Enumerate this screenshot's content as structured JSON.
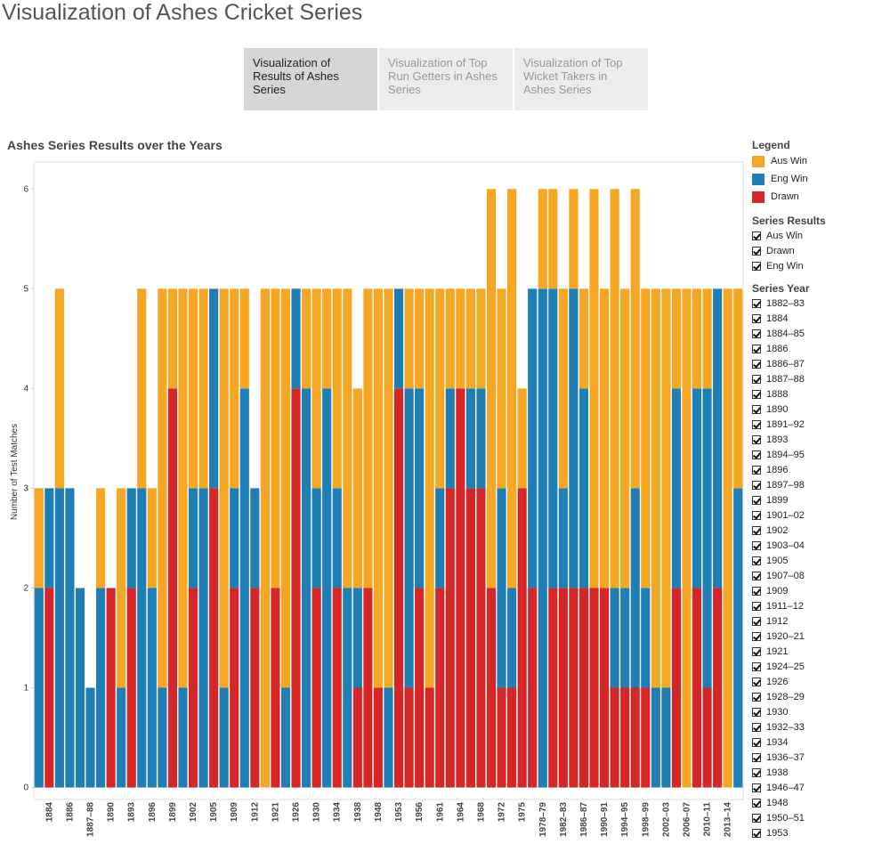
{
  "header": {
    "title": "Visualization of Ashes Cricket Series"
  },
  "tabs": [
    "Visualization of Results of Ashes Series",
    "Visualization of Top Run Getters in Ashes Series",
    "Visualization of Top Wicket Takers in Ashes Series"
  ],
  "chart_data": {
    "type": "stacked_bar",
    "title": "Ashes Series Results over the Years",
    "y_label": "Number of Test Matches",
    "categories": [
      null,
      "1884",
      null,
      "1886",
      null,
      "1887–88",
      null,
      "1890",
      null,
      "1893",
      null,
      "1896",
      null,
      "1899",
      null,
      "1902",
      null,
      "1905",
      null,
      "1909",
      null,
      "1912",
      null,
      "1921",
      null,
      "1926",
      null,
      "1930",
      null,
      "1934",
      null,
      "1938",
      null,
      "1948",
      null,
      "1953",
      null,
      "1956",
      null,
      "1961",
      null,
      "1964",
      null,
      "1968",
      null,
      "1972",
      null,
      "1975",
      null,
      "1978–79",
      null,
      "1982–83",
      null,
      "1986–87",
      null,
      "1990–91",
      null,
      "1994–95",
      null,
      "1998–99",
      null,
      "2002–03",
      null,
      "2006–07",
      null,
      "2010–11",
      null,
      "2013–14",
      null
    ],
    "series": [
      {
        "name": "Aus Win",
        "color": "#f5a623",
        "values": [
          1,
          0,
          2,
          0,
          0,
          0,
          1,
          0,
          2,
          0,
          2,
          1,
          4,
          1,
          4,
          2,
          2,
          0,
          4,
          2,
          1,
          0,
          5,
          3,
          4,
          0,
          1,
          2,
          1,
          2,
          3,
          2,
          3,
          4,
          4,
          0,
          1,
          1,
          4,
          2,
          1,
          1,
          1,
          1,
          4,
          2,
          4,
          1,
          0,
          1,
          1,
          2,
          1,
          1,
          4,
          3,
          4,
          3,
          3,
          3,
          4,
          4,
          1,
          5,
          1,
          1,
          0,
          5,
          2
        ]
      },
      {
        "name": "Eng Win",
        "color": "#1f7fb4",
        "values": [
          2,
          1,
          3,
          3,
          2,
          1,
          2,
          0,
          1,
          1,
          3,
          2,
          1,
          0,
          1,
          1,
          3,
          2,
          1,
          1,
          4,
          1,
          0,
          0,
          1,
          1,
          4,
          1,
          4,
          1,
          2,
          1,
          0,
          0,
          1,
          1,
          3,
          2,
          0,
          1,
          1,
          0,
          1,
          1,
          0,
          2,
          1,
          0,
          3,
          5,
          3,
          1,
          3,
          2,
          0,
          0,
          1,
          1,
          2,
          1,
          1,
          1,
          2,
          0,
          2,
          3,
          3,
          0,
          3
        ]
      },
      {
        "name": "Drawn",
        "color": "#d62728",
        "values": [
          0,
          2,
          0,
          0,
          0,
          0,
          0,
          2,
          0,
          2,
          0,
          0,
          0,
          4,
          0,
          2,
          0,
          3,
          0,
          2,
          0,
          2,
          0,
          2,
          0,
          4,
          0,
          2,
          0,
          2,
          0,
          1,
          2,
          1,
          0,
          4,
          1,
          2,
          1,
          2,
          3,
          4,
          3,
          3,
          2,
          1,
          1,
          3,
          2,
          0,
          2,
          2,
          2,
          2,
          2,
          2,
          1,
          1,
          1,
          1,
          0,
          0,
          2,
          0,
          2,
          1,
          2,
          0,
          0
        ]
      }
    ],
    "ylim": [
      -0.12,
      6.27
    ],
    "yticks": [
      0,
      1,
      2,
      3,
      4,
      5,
      6
    ],
    "legend_title": "Legend"
  },
  "filters": [
    {
      "title": "Series Results",
      "items": [
        "Aus Win",
        "Drawn",
        "Eng Win"
      ]
    },
    {
      "title": "Series Year",
      "items": [
        "1882–83",
        "1884",
        "1884–85",
        "1886",
        "1886–87",
        "1887–88",
        "1888",
        "1890",
        "1891–92",
        "1893",
        "1894–95",
        "1896",
        "1897–98",
        "1899",
        "1901–02",
        "1902",
        "1903–04",
        "1905",
        "1907–08",
        "1909",
        "1911–12",
        "1912",
        "1920–21",
        "1921",
        "1924–25",
        "1926",
        "1928–29",
        "1930",
        "1932–33",
        "1934",
        "1936–37",
        "1938",
        "1946–47",
        "1948",
        "1950–51",
        "1953"
      ]
    }
  ]
}
